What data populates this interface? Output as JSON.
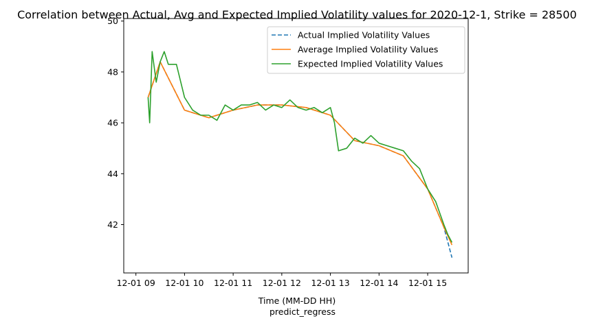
{
  "chart_data": {
    "type": "line",
    "title": "Correlation between Actual, Avg and Expected Implied Volatility values for 2020-12-1, Strike = 28500",
    "xlabel": "Time (MM-DD HH)",
    "xlabel2": "predict_regress",
    "ylabel": "",
    "x_ticks": [
      "12-01 09",
      "12-01 10",
      "12-01 11",
      "12-01 12",
      "12-01 13",
      "12-01 14",
      "12-01 15"
    ],
    "x_range": [
      "2020-12-01 08:45",
      "2020-12-01 15:50"
    ],
    "y_ticks": [
      42,
      44,
      46,
      48,
      50
    ],
    "ylim": [
      40.1,
      50.1
    ],
    "legend_position": "top-right",
    "grid": false,
    "series": [
      {
        "name": "Actual Implied Volatility Values",
        "color": "#1f77b4",
        "style": "dashed",
        "x": [
          "2020-12-01 09:15",
          "2020-12-01 09:30",
          "2020-12-01 10:00",
          "2020-12-01 10:30",
          "2020-12-01 11:00",
          "2020-12-01 11:30",
          "2020-12-01 12:00",
          "2020-12-01 12:30",
          "2020-12-01 13:00",
          "2020-12-01 13:30",
          "2020-12-01 14:00",
          "2020-12-01 14:30",
          "2020-12-01 15:00",
          "2020-12-01 15:20",
          "2020-12-01 15:30"
        ],
        "y": [
          47.0,
          48.4,
          46.5,
          46.2,
          46.5,
          46.7,
          46.7,
          46.6,
          46.3,
          45.3,
          45.1,
          44.7,
          43.4,
          41.9,
          40.7
        ]
      },
      {
        "name": "Average Implied Volatility Values",
        "color": "#ff7f0e",
        "style": "solid",
        "x": [
          "2020-12-01 09:15",
          "2020-12-01 09:30",
          "2020-12-01 10:00",
          "2020-12-01 10:30",
          "2020-12-01 11:00",
          "2020-12-01 11:30",
          "2020-12-01 12:00",
          "2020-12-01 12:30",
          "2020-12-01 13:00",
          "2020-12-01 13:30",
          "2020-12-01 14:00",
          "2020-12-01 14:30",
          "2020-12-01 15:00",
          "2020-12-01 15:20",
          "2020-12-01 15:30"
        ],
        "y": [
          47.0,
          48.4,
          46.5,
          46.2,
          46.5,
          46.7,
          46.7,
          46.6,
          46.3,
          45.3,
          45.1,
          44.7,
          43.4,
          41.9,
          41.2
        ]
      },
      {
        "name": "Expected Implied Volatility Values",
        "color": "#2ca02c",
        "style": "solid",
        "x": [
          "2020-12-01 09:15",
          "2020-12-01 09:17",
          "2020-12-01 09:20",
          "2020-12-01 09:25",
          "2020-12-01 09:30",
          "2020-12-01 09:35",
          "2020-12-01 09:40",
          "2020-12-01 09:50",
          "2020-12-01 10:00",
          "2020-12-01 10:10",
          "2020-12-01 10:20",
          "2020-12-01 10:30",
          "2020-12-01 10:40",
          "2020-12-01 10:50",
          "2020-12-01 11:00",
          "2020-12-01 11:10",
          "2020-12-01 11:20",
          "2020-12-01 11:30",
          "2020-12-01 11:40",
          "2020-12-01 11:50",
          "2020-12-01 12:00",
          "2020-12-01 12:10",
          "2020-12-01 12:20",
          "2020-12-01 12:30",
          "2020-12-01 12:40",
          "2020-12-01 12:50",
          "2020-12-01 13:00",
          "2020-12-01 13:05",
          "2020-12-01 13:10",
          "2020-12-01 13:20",
          "2020-12-01 13:30",
          "2020-12-01 13:40",
          "2020-12-01 13:50",
          "2020-12-01 14:00",
          "2020-12-01 14:10",
          "2020-12-01 14:20",
          "2020-12-01 14:30",
          "2020-12-01 14:40",
          "2020-12-01 14:50",
          "2020-12-01 15:00",
          "2020-12-01 15:10",
          "2020-12-01 15:20",
          "2020-12-01 15:25",
          "2020-12-01 15:30"
        ],
        "y": [
          47.0,
          46.0,
          48.8,
          47.6,
          48.4,
          48.8,
          48.3,
          48.3,
          47.0,
          46.5,
          46.3,
          46.3,
          46.1,
          46.7,
          46.5,
          46.7,
          46.7,
          46.8,
          46.5,
          46.7,
          46.6,
          46.9,
          46.6,
          46.5,
          46.6,
          46.4,
          46.6,
          46.0,
          44.9,
          45.0,
          45.4,
          45.2,
          45.5,
          45.2,
          45.1,
          45.0,
          44.9,
          44.5,
          44.2,
          43.4,
          42.9,
          42.0,
          41.6,
          41.3
        ]
      }
    ]
  }
}
